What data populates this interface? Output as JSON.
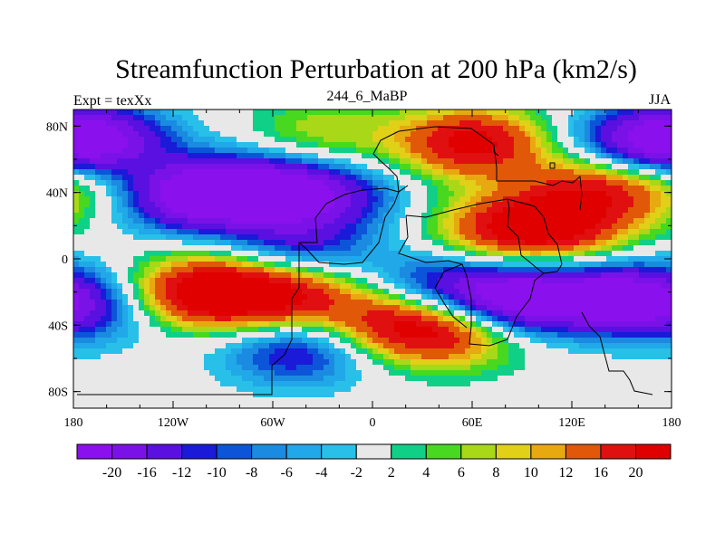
{
  "chart_data": {
    "type": "heatmap",
    "title": "Streamfunction Perturbation at 200 hPa (km2/s)",
    "left_string": "Expt = texXx",
    "center_string": "244_6_MaBP",
    "right_string": "JJA",
    "x_ticks": [
      "180",
      "120W",
      "60W",
      "0",
      "60E",
      "120E",
      "180"
    ],
    "y_ticks": [
      "80N",
      "40N",
      "0",
      "40S",
      "80S"
    ],
    "xlim": [
      -180,
      180
    ],
    "ylim": [
      -90,
      90
    ],
    "colorbar": {
      "labels": [
        "-20",
        "-16",
        "-12",
        "-10",
        "-8",
        "-6",
        "-4",
        "-2",
        "2",
        "4",
        "6",
        "8",
        "10",
        "12",
        "16",
        "20"
      ],
      "levels": [
        -20,
        -16,
        -12,
        -10,
        -8,
        -6,
        -4,
        -2,
        2,
        4,
        6,
        8,
        10,
        12,
        16,
        20
      ],
      "colors": [
        "#8a10ee",
        "#7a12e8",
        "#5a10e0",
        "#1a1ad8",
        "#0d55d8",
        "#1a8be0",
        "#20a8e8",
        "#28c0e8",
        "#e8e8e8",
        "#10d088",
        "#48d820",
        "#a8d818",
        "#e0d018",
        "#e8a810",
        "#e05808",
        "#e01010",
        "#e00000"
      ]
    },
    "field": {
      "units": "km2/s",
      "centers": [
        {
          "lon": -110,
          "lat": 38,
          "value": -22
        },
        {
          "lon": -65,
          "lat": 42,
          "value": -18
        },
        {
          "lon": -25,
          "lat": 38,
          "value": -12
        },
        {
          "lon": -45,
          "lat": 6,
          "value": -12
        },
        {
          "lon": -165,
          "lat": 72,
          "value": -18
        },
        {
          "lon": 160,
          "lat": 70,
          "value": -16
        },
        {
          "lon": 90,
          "lat": -25,
          "value": -24
        },
        {
          "lon": 150,
          "lat": -22,
          "value": -18
        },
        {
          "lon": 40,
          "lat": -18,
          "value": -14
        },
        {
          "lon": -45,
          "lat": -55,
          "value": -14
        },
        {
          "lon": -175,
          "lat": -30,
          "value": -12
        },
        {
          "lon": -100,
          "lat": -20,
          "value": 25
        },
        {
          "lon": -50,
          "lat": -22,
          "value": 18
        },
        {
          "lon": 15,
          "lat": -38,
          "value": 18
        },
        {
          "lon": 50,
          "lat": -45,
          "value": 14
        },
        {
          "lon": 60,
          "lat": 70,
          "value": 22
        },
        {
          "lon": 80,
          "lat": 18,
          "value": 16
        },
        {
          "lon": 115,
          "lat": 18,
          "value": 14
        },
        {
          "lon": 135,
          "lat": 44,
          "value": 16
        },
        {
          "lon": -30,
          "lat": 75,
          "value": 8
        },
        {
          "lon": -175,
          "lat": 42,
          "value": 6
        }
      ]
    },
    "grid": false
  }
}
